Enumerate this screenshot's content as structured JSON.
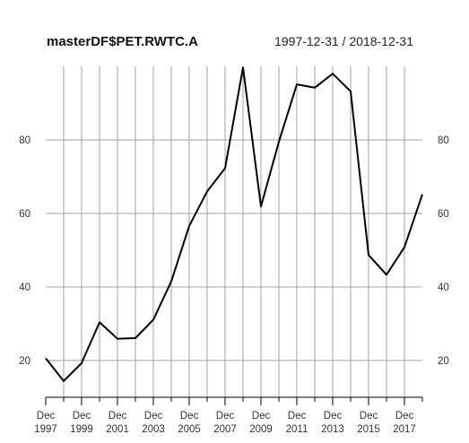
{
  "chart_data": {
    "type": "line",
    "title": "masterDF$PET.RWTC.A",
    "date_range": "1997-12-31 / 2018-12-31",
    "x": [
      "1997-12-31",
      "1998-12-31",
      "1999-12-31",
      "2000-12-31",
      "2001-12-31",
      "2002-12-31",
      "2003-12-31",
      "2004-12-31",
      "2005-12-31",
      "2006-12-31",
      "2007-12-31",
      "2008-12-31",
      "2009-12-31",
      "2010-12-31",
      "2011-12-31",
      "2012-12-31",
      "2013-12-31",
      "2014-12-31",
      "2015-12-31",
      "2016-12-31",
      "2017-12-31",
      "2018-12-31"
    ],
    "series": [
      {
        "values": [
          20.6,
          14.4,
          19.3,
          30.4,
          25.9,
          26.1,
          31.1,
          41.5,
          56.6,
          66.0,
          72.3,
          99.7,
          61.9,
          79.5,
          95.1,
          94.2,
          98.0,
          93.2,
          48.7,
          43.3,
          50.8,
          65.2
        ]
      }
    ],
    "x_tick_labels": [
      {
        "month": "Dec",
        "year": "1997"
      },
      {
        "month": "Dec",
        "year": "1999"
      },
      {
        "month": "Dec",
        "year": "2001"
      },
      {
        "month": "Dec",
        "year": "2003"
      },
      {
        "month": "Dec",
        "year": "2005"
      },
      {
        "month": "Dec",
        "year": "2007"
      },
      {
        "month": "Dec",
        "year": "2009"
      },
      {
        "month": "Dec",
        "year": "2011"
      },
      {
        "month": "Dec",
        "year": "2013"
      },
      {
        "month": "Dec",
        "year": "2015"
      },
      {
        "month": "Dec",
        "year": "2017"
      }
    ],
    "y_ticks": [
      20,
      40,
      60,
      80
    ],
    "ylim": [
      10,
      100
    ],
    "grid": true,
    "line_color": "#000000",
    "grid_color": "#a0a0a0"
  }
}
